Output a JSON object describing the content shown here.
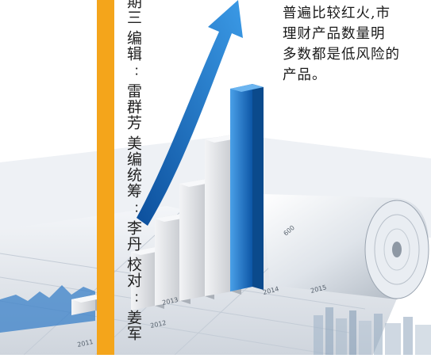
{
  "credits": {
    "issue": "期三",
    "editor_label": "编辑",
    "editor_name": "雷群芳",
    "design_label": "美编统筹",
    "design_name": "李丹",
    "proof_label": "校对",
    "proof_name": "姜军",
    "colon": "："
  },
  "paragraph": {
    "line1": "普遍比较红火,市",
    "line2": "理财产品数量明",
    "line3": "多数都是低风险的",
    "line4": "产品。"
  },
  "axis_labels": {
    "y_2011": "2011",
    "y_2012": "2012",
    "y_2013": "2013",
    "y_2014": "2014",
    "y_2015": "2015",
    "y_600": "600"
  },
  "colors": {
    "orange": "#f4a51b",
    "blue": "#1e6fc2",
    "bar_gray": "#d9dbdf"
  },
  "illustration": {
    "subject": "3D bar chart with rising blue arrow over rolled paper sheets"
  }
}
